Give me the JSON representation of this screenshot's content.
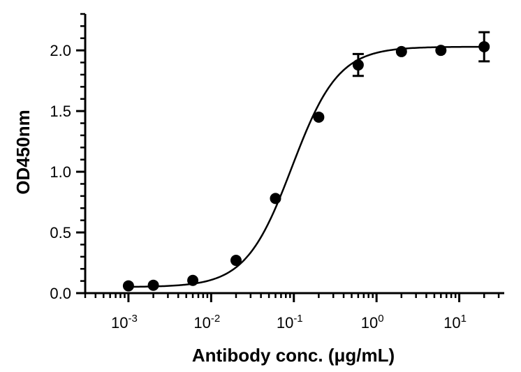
{
  "chart_data": {
    "type": "scatter",
    "xlabel": "Antibody conc. (μg/mL)",
    "ylabel": "OD450nm",
    "x_scale": "log",
    "xlim": [
      0.0003,
      35
    ],
    "ylim": [
      0,
      2.3
    ],
    "x_ticks": [
      {
        "value": 0.001,
        "base": "10",
        "exp": "-3"
      },
      {
        "value": 0.01,
        "base": "10",
        "exp": "-2"
      },
      {
        "value": 0.1,
        "base": "10",
        "exp": "-1"
      },
      {
        "value": 1,
        "base": "10",
        "exp": "0"
      },
      {
        "value": 10,
        "base": "10",
        "exp": "1"
      }
    ],
    "y_ticks": [
      "0.0",
      "0.5",
      "1.0",
      "1.5",
      "2.0"
    ],
    "grid": false,
    "color": "#000000",
    "points": [
      {
        "x": 0.001,
        "y": 0.06,
        "err": 0
      },
      {
        "x": 0.002,
        "y": 0.065,
        "err": 0
      },
      {
        "x": 0.006,
        "y": 0.105,
        "err": 0
      },
      {
        "x": 0.02,
        "y": 0.27,
        "err": 0
      },
      {
        "x": 0.06,
        "y": 0.78,
        "err": 0
      },
      {
        "x": 0.2,
        "y": 1.45,
        "err": 0
      },
      {
        "x": 0.6,
        "y": 1.88,
        "err": 0.09
      },
      {
        "x": 2,
        "y": 1.99,
        "err": 0
      },
      {
        "x": 6,
        "y": 2.0,
        "err": 0
      },
      {
        "x": 20,
        "y": 2.03,
        "err": 0.12
      }
    ],
    "fit_curve": {
      "model": "4PL",
      "bottom": 0.05,
      "top": 2.03,
      "ec50": 0.095,
      "hill": 1.55
    }
  }
}
